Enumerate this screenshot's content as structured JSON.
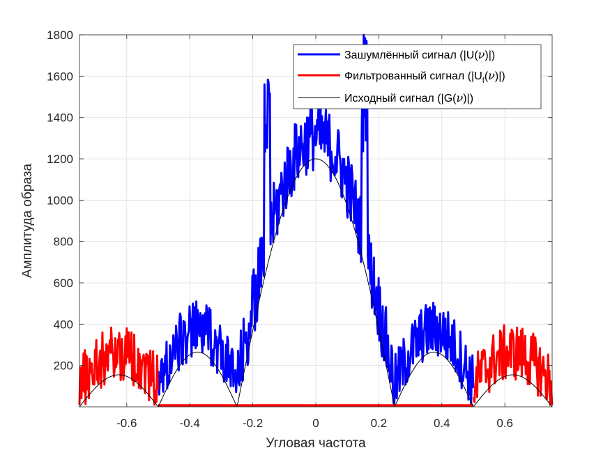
{
  "chart_data": {
    "type": "line",
    "xlabel": "Угловая частота",
    "ylabel": "Амплитуда образа",
    "xlim": [
      -0.75,
      0.75
    ],
    "ylim": [
      0,
      1800
    ],
    "xticks": [
      -0.6,
      -0.4,
      -0.2,
      0,
      0.2,
      0.4,
      0.6
    ],
    "xtick_labels": [
      "-0.6",
      "-0.4",
      "-0.2",
      "0",
      "0.2",
      "0.4",
      "0.6"
    ],
    "yticks": [
      200,
      400,
      600,
      800,
      1000,
      1200,
      1400,
      1600,
      1800
    ],
    "ytick_labels": [
      "200",
      "400",
      "600",
      "800",
      "1000",
      "1200",
      "1400",
      "1600",
      "1800"
    ],
    "grid": true,
    "legend_position": "top-right",
    "series": [
      {
        "name": "Зашумлённый сигнал (|U(ν)|)",
        "color": "#0000ff",
        "description_points": {
          "x": [
            -0.5,
            -0.45,
            -0.4,
            -0.35,
            -0.3,
            -0.25,
            -0.2,
            -0.17,
            -0.16,
            -0.15,
            -0.12,
            -0.08,
            -0.04,
            0,
            0.04,
            0.08,
            0.12,
            0.15,
            0.16,
            0.17,
            0.2,
            0.25,
            0.3,
            0.35,
            0.4,
            0.45,
            0.5
          ],
          "y": [
            200,
            260,
            320,
            360,
            300,
            220,
            450,
            700,
            1800,
            700,
            800,
            1000,
            1080,
            1150,
            1080,
            1000,
            800,
            700,
            1800,
            700,
            450,
            220,
            300,
            360,
            320,
            260,
            200
          ]
        }
      },
      {
        "name": "Фильтрованный сигнал (|U_f(ν)|)",
        "color": "#ff0000",
        "description_points": {
          "x": [
            -0.75,
            -0.7,
            -0.65,
            -0.6,
            -0.55,
            -0.5,
            0.5,
            0.55,
            0.6,
            0.65,
            0.7,
            0.75
          ],
          "y": [
            200,
            230,
            270,
            300,
            260,
            220,
            0,
            220,
            260,
            300,
            270,
            200
          ]
        }
      },
      {
        "name": "Исходный сигнал (|G(ν)|)",
        "color": "#000000",
        "description_points": {
          "x": [
            -0.75,
            -0.6125,
            -0.5,
            -0.3625,
            -0.25,
            0,
            0.25,
            0.3625,
            0.5,
            0.6125,
            0.75
          ],
          "y": [
            0,
            155,
            0,
            265,
            0,
            1200,
            0,
            265,
            0,
            155,
            0
          ]
        }
      }
    ],
    "legend": {
      "noisy_prefix": "Зашумлённый сигнал (|U(",
      "filtered_prefix": "Фильтрованный сигнал (|U",
      "filtered_sub": "f",
      "original_prefix": "Исходный сигнал (|G(",
      "nu": "ν",
      "suffix": ")|)"
    }
  }
}
